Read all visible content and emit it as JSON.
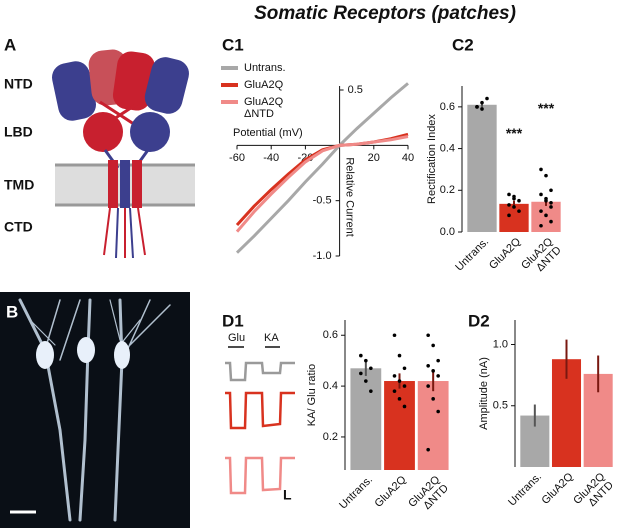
{
  "title": "Somatic Receptors (patches)",
  "panels": {
    "a": "A",
    "b": "B",
    "c1": "C1",
    "c2": "C2",
    "d1": "D1",
    "d2": "D2"
  },
  "domains": [
    "NTD",
    "LBD",
    "TMD",
    "CTD"
  ],
  "traces": {
    "glu": "Glu",
    "ka": "KA",
    "scale": "L"
  },
  "chart_data": [
    {
      "type": "line",
      "xlabel": "Potential (mV)",
      "ylabel": "Relative Current",
      "x": [
        -60,
        -50,
        -40,
        -30,
        -20,
        -10,
        0,
        10,
        20,
        30,
        40
      ],
      "xlim": [
        -60,
        40
      ],
      "xticks": [
        -60,
        -40,
        -20,
        20,
        40
      ],
      "ylim": [
        -1.0,
        0.5
      ],
      "yticks": [
        0.5,
        -0.5,
        {
          "value": -1.0,
          "label": "-1.0"
        }
      ],
      "series": [
        {
          "name": "Untrans.",
          "color": "#a8a8a8",
          "values": [
            -0.97,
            -0.82,
            -0.66,
            -0.5,
            -0.33,
            -0.17,
            0,
            0.15,
            0.29,
            0.43,
            0.56
          ]
        },
        {
          "name": "GluA2Q",
          "color": "#d8321f",
          "values": [
            -0.72,
            -0.55,
            -0.4,
            -0.26,
            -0.13,
            -0.04,
            0,
            0.01,
            0.03,
            0.06,
            0.1
          ]
        },
        {
          "name": "GluA2Q\nΔNTD",
          "color": "#f08a88",
          "values": [
            -0.78,
            -0.6,
            -0.44,
            -0.29,
            -0.15,
            -0.05,
            0,
            0.01,
            0.03,
            0.05,
            0.08
          ]
        }
      ]
    },
    {
      "type": "bar",
      "ylabel": "Rectification Index",
      "categories": [
        "Untrans.",
        "GluA2Q",
        "GluA2Q\nΔNTD"
      ],
      "colors": [
        "#a8a8a8",
        "#d8321f",
        "#f08a88"
      ],
      "values": [
        0.61,
        0.135,
        0.145
      ],
      "errors": [
        0.01,
        0.015,
        0.02
      ],
      "points": [
        [
          0.6,
          0.62,
          0.64,
          0.6,
          0.59
        ],
        [
          0.18,
          0.17,
          0.15,
          0.13,
          0.12,
          0.1,
          0.08,
          0.16
        ],
        [
          0.3,
          0.27,
          0.2,
          0.18,
          0.15,
          0.12,
          0.1,
          0.08,
          0.05,
          0.03,
          0.16,
          0.14
        ]
      ],
      "annotations": [
        null,
        "***",
        "***"
      ],
      "ylim": [
        0,
        0.7
      ],
      "yticks": [
        {
          "value": 0,
          "label": "0.0"
        },
        0.2,
        0.4,
        0.6
      ]
    },
    {
      "type": "bar",
      "ylabel": "KA/ Glu ratio",
      "categories": [
        "Untrans.",
        "GluA2Q",
        "GluA2Q\nΔNTD"
      ],
      "colors": [
        "#a8a8a8",
        "#d8321f",
        "#f08a88"
      ],
      "values": [
        0.47,
        0.42,
        0.42
      ],
      "errors": [
        0.03,
        0.03,
        0.04
      ],
      "points": [
        [
          0.52,
          0.5,
          0.47,
          0.45,
          0.42,
          0.38
        ],
        [
          0.6,
          0.52,
          0.47,
          0.44,
          0.42,
          0.4,
          0.38,
          0.35,
          0.32
        ],
        [
          0.6,
          0.56,
          0.5,
          0.48,
          0.46,
          0.44,
          0.4,
          0.35,
          0.3,
          0.15
        ]
      ],
      "ylim": [
        0.07,
        0.66
      ],
      "yticks": [
        0.2,
        0.4,
        0.6
      ]
    },
    {
      "type": "bar",
      "ylabel": "Amplitude (nA)",
      "categories": [
        "Untrans.",
        "GluA2Q",
        "GluA2Q\nΔNTD"
      ],
      "colors": [
        "#a8a8a8",
        "#d8321f",
        "#f08a88"
      ],
      "values": [
        0.42,
        0.88,
        0.76
      ],
      "errors": [
        0.09,
        0.16,
        0.15
      ],
      "ylim": [
        0,
        1.2
      ],
      "yticks": [
        0.5,
        {
          "value": 1.0,
          "label": "1.0"
        }
      ]
    }
  ]
}
